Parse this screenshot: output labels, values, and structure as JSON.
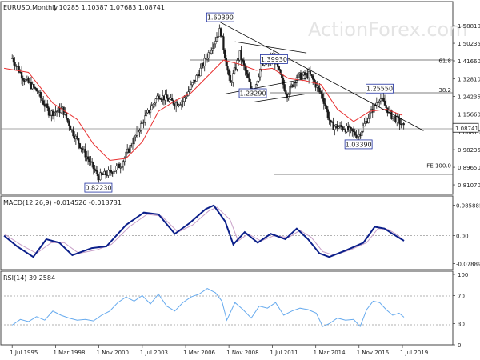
{
  "header": {
    "symbol_label": "EURUSD,Monthly",
    "ohlc": "1.10285 1.10387 1.07683 1.08741"
  },
  "watermark": "ActionForex.com",
  "chart_data": [
    {
      "type": "candlestick",
      "title": "EURUSD,Monthly",
      "ylim": [
        0.7757,
        1.6941
      ],
      "y_ticks": [
        "1.58810",
        "1.50235",
        "1.41660",
        "1.32810",
        "1.24235",
        "1.15660",
        "1.06810",
        "0.98235",
        "0.89650",
        "0.81070"
      ],
      "last_price_label": "1.08741",
      "price_path": [
        [
          1995.5,
          1.43
        ],
        [
          1996.2,
          1.33
        ],
        [
          1997.0,
          1.27
        ],
        [
          1997.8,
          1.16
        ],
        [
          1998.6,
          1.18
        ],
        [
          1999.2,
          1.07
        ],
        [
          2000.0,
          0.96
        ],
        [
          2000.8,
          0.85
        ],
        [
          2001.5,
          0.87
        ],
        [
          2002.2,
          0.91
        ],
        [
          2002.9,
          1.02
        ],
        [
          2003.6,
          1.13
        ],
        [
          2004.5,
          1.25
        ],
        [
          2005.5,
          1.21
        ],
        [
          2006.0,
          1.22
        ],
        [
          2007.0,
          1.36
        ],
        [
          2008.3,
          1.57
        ],
        [
          2008.9,
          1.3
        ],
        [
          2009.5,
          1.45
        ],
        [
          2010.3,
          1.25
        ],
        [
          2010.8,
          1.39
        ],
        [
          2011.6,
          1.43
        ],
        [
          2012.4,
          1.25
        ],
        [
          2013.0,
          1.34
        ],
        [
          2013.8,
          1.35
        ],
        [
          2014.6,
          1.24
        ],
        [
          2015.1,
          1.1
        ],
        [
          2015.9,
          1.09
        ],
        [
          2016.8,
          1.05
        ],
        [
          2017.6,
          1.17
        ],
        [
          2018.1,
          1.24
        ],
        [
          2018.8,
          1.15
        ],
        [
          2019.3,
          1.12
        ],
        [
          2019.6,
          1.087
        ]
      ],
      "moving_average": [
        [
          1995.0,
          1.38
        ],
        [
          1996.5,
          1.36
        ],
        [
          1998.0,
          1.21
        ],
        [
          1999.5,
          1.13
        ],
        [
          2000.5,
          1.01
        ],
        [
          2001.5,
          0.93
        ],
        [
          2002.5,
          0.94
        ],
        [
          2003.5,
          1.02
        ],
        [
          2004.5,
          1.17
        ],
        [
          2005.5,
          1.22
        ],
        [
          2006.5,
          1.26
        ],
        [
          2007.5,
          1.34
        ],
        [
          2008.5,
          1.42
        ],
        [
          2009.5,
          1.4
        ],
        [
          2010.5,
          1.37
        ],
        [
          2011.5,
          1.38
        ],
        [
          2012.5,
          1.33
        ],
        [
          2013.5,
          1.32
        ],
        [
          2014.5,
          1.3
        ],
        [
          2015.5,
          1.18
        ],
        [
          2016.5,
          1.12
        ],
        [
          2017.5,
          1.17
        ],
        [
          2018.5,
          1.18
        ],
        [
          2019.5,
          1.15
        ]
      ],
      "price_labels": [
        {
          "text": "1.60390",
          "x": 2008.3,
          "y": 1.6039
        },
        {
          "text": "1.39930",
          "x": 2011.6,
          "y": 1.3993
        },
        {
          "text": "1.23290",
          "x": 2010.3,
          "y": 1.2329
        },
        {
          "text": "1.25550",
          "x": 2018.1,
          "y": 1.2555
        },
        {
          "text": "1.03390",
          "x": 2016.8,
          "y": 1.0339
        },
        {
          "text": "0.82230",
          "x": 2000.8,
          "y": 0.8223
        }
      ],
      "level_labels": [
        {
          "text": "61.8",
          "y": 1.3993
        },
        {
          "text": "38.2",
          "y": 1.2555
        },
        {
          "text": "FE 100.0",
          "y": 0.8875
        }
      ],
      "trend_lines": [
        {
          "from": [
            2008.3,
            1.605
          ],
          "to": [
            2020.8,
            1.075
          ]
        },
        {
          "from": [
            2009.2,
            1.51
          ],
          "to": [
            2013.6,
            1.455
          ]
        },
        {
          "from": [
            2008.6,
            1.255
          ],
          "to": [
            2013.6,
            1.33
          ]
        },
        {
          "from": [
            2010.3,
            1.215
          ],
          "to": [
            2013.6,
            1.255
          ]
        }
      ]
    },
    {
      "type": "line",
      "title": "MACD(12,26,9) -0.014526 -0.013731",
      "ylim": [
        -0.0889,
        0.0959
      ],
      "y_ticks": [
        "0.085885",
        "0.00",
        "-0.078894"
      ],
      "series": [
        {
          "values": [
            [
              1995.0,
              0.0
            ],
            [
              1995.8,
              -0.03
            ],
            [
              1996.8,
              -0.06
            ],
            [
              1997.6,
              -0.01
            ],
            [
              1998.4,
              -0.02
            ],
            [
              1999.2,
              -0.055
            ],
            [
              2000.4,
              -0.035
            ],
            [
              2001.3,
              -0.03
            ],
            [
              2002.5,
              0.03
            ],
            [
              2003.6,
              0.065
            ],
            [
              2004.5,
              0.06
            ],
            [
              2005.5,
              0.005
            ],
            [
              2006.4,
              0.035
            ],
            [
              2007.4,
              0.075
            ],
            [
              2007.9,
              0.085
            ],
            [
              2008.6,
              0.04
            ],
            [
              2009.1,
              -0.025
            ],
            [
              2009.8,
              0.01
            ],
            [
              2010.6,
              -0.02
            ],
            [
              2011.4,
              0.005
            ],
            [
              2012.3,
              -0.01
            ],
            [
              2013.0,
              0.02
            ],
            [
              2013.7,
              -0.01
            ],
            [
              2014.4,
              -0.05
            ],
            [
              2015.0,
              -0.06
            ],
            [
              2016.1,
              -0.04
            ],
            [
              2017.1,
              -0.02
            ],
            [
              2017.8,
              0.025
            ],
            [
              2018.4,
              0.02
            ],
            [
              2018.9,
              0.005
            ],
            [
              2019.6,
              -0.0145
            ]
          ]
        },
        {
          "values": [
            [
              1995.0,
              0.005
            ],
            [
              1996.0,
              -0.025
            ],
            [
              1997.0,
              -0.05
            ],
            [
              1997.9,
              -0.02
            ],
            [
              1998.7,
              -0.02
            ],
            [
              1999.6,
              -0.05
            ],
            [
              2000.7,
              -0.04
            ],
            [
              2001.6,
              -0.025
            ],
            [
              2002.7,
              0.025
            ],
            [
              2003.8,
              0.06
            ],
            [
              2004.7,
              0.055
            ],
            [
              2005.7,
              0.01
            ],
            [
              2006.6,
              0.03
            ],
            [
              2007.6,
              0.07
            ],
            [
              2008.1,
              0.08
            ],
            [
              2008.9,
              0.045
            ],
            [
              2009.4,
              -0.015
            ],
            [
              2010.0,
              0.005
            ],
            [
              2010.8,
              -0.015
            ],
            [
              2011.6,
              0.0
            ],
            [
              2012.5,
              -0.005
            ],
            [
              2013.2,
              0.015
            ],
            [
              2013.9,
              -0.005
            ],
            [
              2014.6,
              -0.045
            ],
            [
              2015.3,
              -0.055
            ],
            [
              2016.3,
              -0.04
            ],
            [
              2017.3,
              -0.02
            ],
            [
              2018.0,
              0.02
            ],
            [
              2018.6,
              0.018
            ],
            [
              2019.1,
              0.005
            ],
            [
              2019.6,
              -0.0137
            ]
          ]
        }
      ]
    },
    {
      "type": "line",
      "title": "RSI(14) 39.2584",
      "ylim": [
        0,
        100
      ],
      "y_ticks": [
        "100",
        "70",
        "30",
        "0"
      ],
      "series": [
        {
          "values": [
            [
              1995.5,
              28
            ],
            [
              1996.0,
              36
            ],
            [
              1996.5,
              33
            ],
            [
              1997.0,
              40
            ],
            [
              1997.5,
              35
            ],
            [
              1998.0,
              48
            ],
            [
              1998.5,
              42
            ],
            [
              1999.0,
              38
            ],
            [
              1999.5,
              35
            ],
            [
              2000.0,
              36
            ],
            [
              2000.5,
              34
            ],
            [
              2001.0,
              42
            ],
            [
              2001.5,
              48
            ],
            [
              2002.0,
              60
            ],
            [
              2002.5,
              68
            ],
            [
              2003.0,
              62
            ],
            [
              2003.5,
              70
            ],
            [
              2004.0,
              58
            ],
            [
              2004.5,
              72
            ],
            [
              2005.0,
              55
            ],
            [
              2005.5,
              48
            ],
            [
              2006.0,
              60
            ],
            [
              2006.5,
              68
            ],
            [
              2007.0,
              72
            ],
            [
              2007.5,
              80
            ],
            [
              2008.0,
              74
            ],
            [
              2008.4,
              62
            ],
            [
              2008.7,
              35
            ],
            [
              2009.2,
              60
            ],
            [
              2009.7,
              50
            ],
            [
              2010.2,
              38
            ],
            [
              2010.7,
              55
            ],
            [
              2011.2,
              52
            ],
            [
              2011.7,
              60
            ],
            [
              2012.2,
              42
            ],
            [
              2012.7,
              48
            ],
            [
              2013.2,
              52
            ],
            [
              2013.7,
              50
            ],
            [
              2014.2,
              45
            ],
            [
              2014.6,
              26
            ],
            [
              2015.0,
              30
            ],
            [
              2015.5,
              38
            ],
            [
              2016.0,
              35
            ],
            [
              2016.5,
              36
            ],
            [
              2016.9,
              26
            ],
            [
              2017.3,
              50
            ],
            [
              2017.7,
              62
            ],
            [
              2018.1,
              60
            ],
            [
              2018.5,
              50
            ],
            [
              2018.9,
              42
            ],
            [
              2019.3,
              45
            ],
            [
              2019.6,
              39.2584
            ]
          ]
        }
      ]
    }
  ],
  "x_axis": {
    "ticks": [
      {
        "label": "1 Jul 1995",
        "x": 1995.5
      },
      {
        "label": "1 Mar 1998",
        "x": 1998.17
      },
      {
        "label": "1 Nov 2000",
        "x": 2000.83
      },
      {
        "label": "1 Jul 2003",
        "x": 2003.5
      },
      {
        "label": "1 Mar 2006",
        "x": 2006.17
      },
      {
        "label": "1 Nov 2008",
        "x": 2008.83
      },
      {
        "label": "1 Jul 2011",
        "x": 2011.5
      },
      {
        "label": "1 Mar 2014",
        "x": 2014.17
      },
      {
        "label": "1 Nov 2016",
        "x": 2016.83
      },
      {
        "label": "1 Jul 2019",
        "x": 2019.5
      }
    ]
  },
  "colors": {
    "candles": "#1a1a1a",
    "moving_average": "#e83030",
    "macd": "#0b1f8a",
    "macd_signal": "#c8a0c8",
    "rsi": "#66aaee",
    "trendline": "#000000",
    "gridline": "#888888",
    "label_border": "#2030a0"
  }
}
